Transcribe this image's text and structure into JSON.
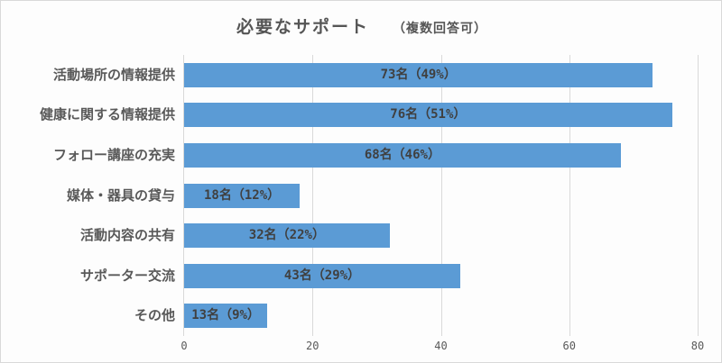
{
  "chart_data": {
    "type": "bar",
    "orientation": "horizontal",
    "title": "必要なサポート",
    "subtitle": "（複数回答可）",
    "categories": [
      "活動場所の情報提供",
      "健康に関する情報提供",
      "フォロー講座の充実",
      "媒体・器具の貸与",
      "活動内容の共有",
      "サポーター交流",
      "その他"
    ],
    "values": [
      73,
      76,
      68,
      18,
      32,
      43,
      13
    ],
    "data_labels": [
      "73名（49%）",
      "76名（51%）",
      "68名（46%）",
      "18名（12%）",
      "32名（22%）",
      "43名（29%）",
      "13名（9%）"
    ],
    "xlabel": "",
    "ylabel": "",
    "xlim": [
      0,
      80
    ],
    "xticks": [
      "0",
      "20",
      "40",
      "60",
      "80"
    ],
    "grid": true,
    "legend": "none",
    "bar_color": "#5b9bd5"
  }
}
